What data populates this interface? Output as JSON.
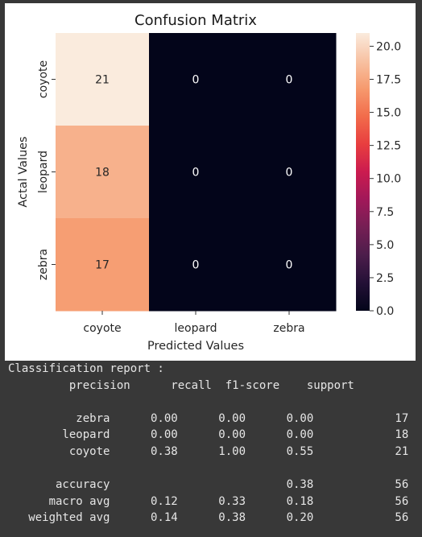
{
  "chart_data": {
    "type": "heatmap",
    "title": "Confusion Matrix",
    "xlabel": "Predicted Values",
    "ylabel": "Actal Values",
    "x_categories": [
      "coyote",
      "leopard",
      "zebra"
    ],
    "y_categories": [
      "coyote",
      "leopard",
      "zebra"
    ],
    "values": [
      [
        21,
        0,
        0
      ],
      [
        18,
        0,
        0
      ],
      [
        17,
        0,
        0
      ]
    ],
    "colorbar": {
      "min": 0,
      "max": 21,
      "ticks": [
        0.0,
        2.5,
        5.0,
        7.5,
        10.0,
        12.5,
        15.0,
        17.5,
        20.0
      ],
      "tick_labels": [
        "0.0",
        "2.5",
        "5.0",
        "7.5",
        "10.0",
        "12.5",
        "15.0",
        "17.5",
        "20.0"
      ],
      "colormap": "rocket"
    }
  },
  "report": {
    "title": "Classification report :",
    "headers": [
      "precision",
      "recall",
      "f1-score",
      "support"
    ],
    "rows": [
      {
        "label": "zebra",
        "precision": "0.00",
        "recall": "0.00",
        "f1": "0.00",
        "support": "17"
      },
      {
        "label": "leopard",
        "precision": "0.00",
        "recall": "0.00",
        "f1": "0.00",
        "support": "18"
      },
      {
        "label": "coyote",
        "precision": "0.38",
        "recall": "1.00",
        "f1": "0.55",
        "support": "21"
      }
    ],
    "summary": [
      {
        "label": "accuracy",
        "precision": "",
        "recall": "",
        "f1": "0.38",
        "support": "56"
      },
      {
        "label": "macro avg",
        "precision": "0.12",
        "recall": "0.33",
        "f1": "0.18",
        "support": "56"
      },
      {
        "label": "weighted avg",
        "precision": "0.14",
        "recall": "0.38",
        "f1": "0.20",
        "support": "56"
      }
    ]
  }
}
